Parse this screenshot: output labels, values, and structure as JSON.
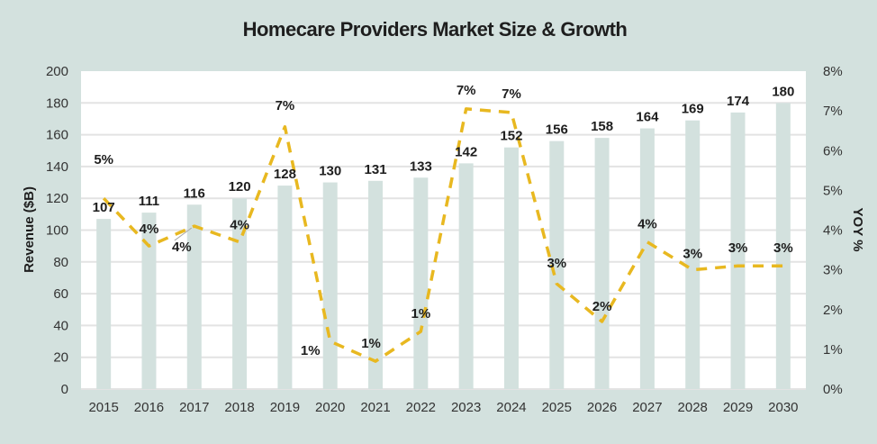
{
  "colors": {
    "background": "#d3e1de",
    "plot_background": "#ffffff",
    "gridline": "#e3e3e3",
    "bar": "#d3e1de",
    "line": "#e8b820",
    "text": "#1e1e1e"
  },
  "chart_data": {
    "type": "bar",
    "combo": "bar+line (dual axis)",
    "title": "Homecare Providers Market Size & Growth",
    "xlabel": "",
    "ylabel": "Revenue ($B)",
    "y2label": "YOY %",
    "categories": [
      "2015",
      "2016",
      "2017",
      "2018",
      "2019",
      "2020",
      "2021",
      "2022",
      "2023",
      "2024",
      "2025",
      "2026",
      "2027",
      "2028",
      "2029",
      "2030"
    ],
    "ylim": [
      0,
      200
    ],
    "yticks": [
      0,
      20,
      40,
      60,
      80,
      100,
      120,
      140,
      160,
      180,
      200
    ],
    "y2lim": [
      0,
      8
    ],
    "y2ticks": [
      "0%",
      "1%",
      "2%",
      "3%",
      "4%",
      "5%",
      "6%",
      "7%",
      "8%"
    ],
    "grid": true,
    "legend": "none",
    "series": [
      {
        "name": "Revenue ($B)",
        "type": "bar",
        "axis": "left",
        "values": [
          107,
          111,
          116,
          120,
          128,
          130,
          131,
          133,
          142,
          152,
          156,
          158,
          164,
          169,
          174,
          180
        ],
        "labels": [
          "107",
          "111",
          "116",
          "120",
          "128",
          "130",
          "131",
          "133",
          "142",
          "152",
          "156",
          "158",
          "164",
          "169",
          "174",
          "180"
        ]
      },
      {
        "name": "YOY %",
        "type": "line",
        "style": "dashed",
        "axis": "right",
        "values": [
          4.8,
          3.6,
          4.1,
          3.7,
          6.6,
          1.2,
          0.7,
          1.45,
          7.05,
          6.96,
          2.65,
          1.7,
          3.7,
          3.0,
          3.1,
          3.1
        ],
        "labels": [
          "5%",
          "4%",
          "4%",
          "4%",
          "7%",
          "1%",
          "1%",
          "1%",
          "7%",
          "7%",
          "3%",
          "2%",
          "4%",
          "3%",
          "3%",
          "3%"
        ]
      }
    ]
  }
}
